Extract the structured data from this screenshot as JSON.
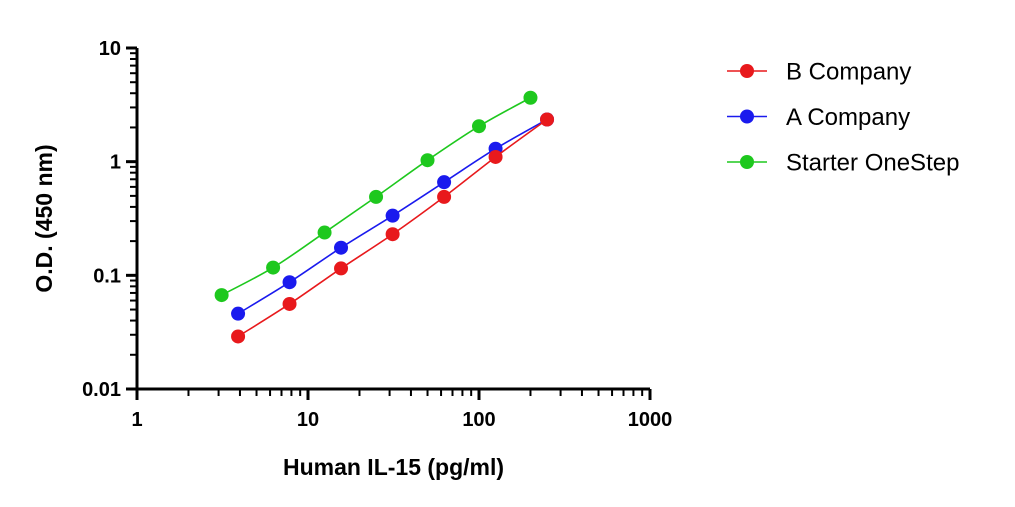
{
  "chart_data": {
    "type": "line",
    "xlabel": "Human IL-15 (pg/ml)",
    "ylabel": "O.D. (450 nm)",
    "x_scale": "log",
    "y_scale": "log",
    "xlim": [
      1,
      1000
    ],
    "ylim": [
      0.01,
      10
    ],
    "x_ticks": [
      "1",
      "10",
      "100",
      "1000"
    ],
    "y_ticks": [
      "0.01",
      "0.1",
      "1",
      "10"
    ],
    "grid": false,
    "legend_position": "right",
    "series": [
      {
        "name": "B Company",
        "color": "#e8191c",
        "x": [
          3.9,
          7.8,
          15.6,
          31.25,
          62.5,
          125,
          250
        ],
        "y": [
          0.029,
          0.056,
          0.115,
          0.23,
          0.49,
          1.1,
          2.35
        ]
      },
      {
        "name": "A Company",
        "color": "#1a1aee",
        "x": [
          3.9,
          7.8,
          15.6,
          31.25,
          62.5,
          125,
          250
        ],
        "y": [
          0.046,
          0.087,
          0.175,
          0.335,
          0.66,
          1.3,
          2.35
        ]
      },
      {
        "name": "Starter OneStep",
        "color": "#1ec81e",
        "x": [
          3.125,
          6.25,
          12.5,
          25,
          50,
          100,
          200
        ],
        "y": [
          0.067,
          0.117,
          0.238,
          0.49,
          1.03,
          2.05,
          3.65
        ]
      }
    ]
  }
}
